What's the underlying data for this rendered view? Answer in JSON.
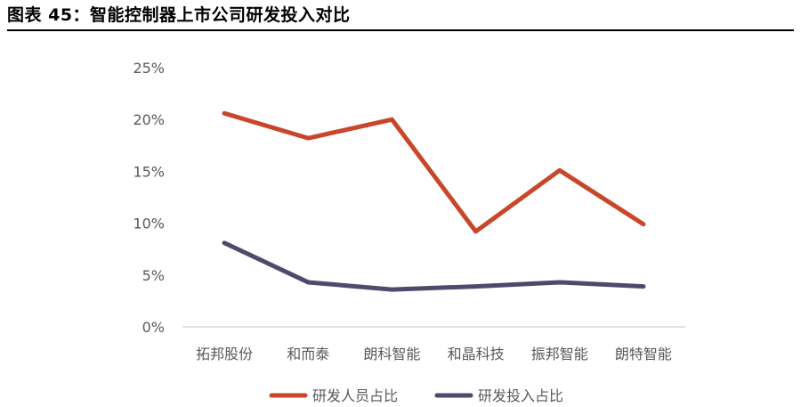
{
  "page": {
    "figure_title": "图表 45：智能控制器上市公司研发投入对比"
  },
  "chart_data": {
    "type": "line",
    "categories": [
      "拓邦股份",
      "和而泰",
      "朗科智能",
      "和晶科技",
      "振邦智能",
      "朗特智能"
    ],
    "series": [
      {
        "name": "研发人员占比",
        "color": "#C8462A",
        "values": [
          20.6,
          18.2,
          20.0,
          9.2,
          15.1,
          9.9
        ]
      },
      {
        "name": "研发投入占比",
        "color": "#4E4A6E",
        "values": [
          8.1,
          4.3,
          3.6,
          3.9,
          4.3,
          3.9
        ]
      }
    ],
    "y_ticks": [
      "0%",
      "5%",
      "10%",
      "15%",
      "20%",
      "25%"
    ],
    "ylim": [
      0,
      25
    ],
    "grid": false,
    "legend_position": "bottom",
    "title": "",
    "xlabel": "",
    "ylabel": ""
  }
}
